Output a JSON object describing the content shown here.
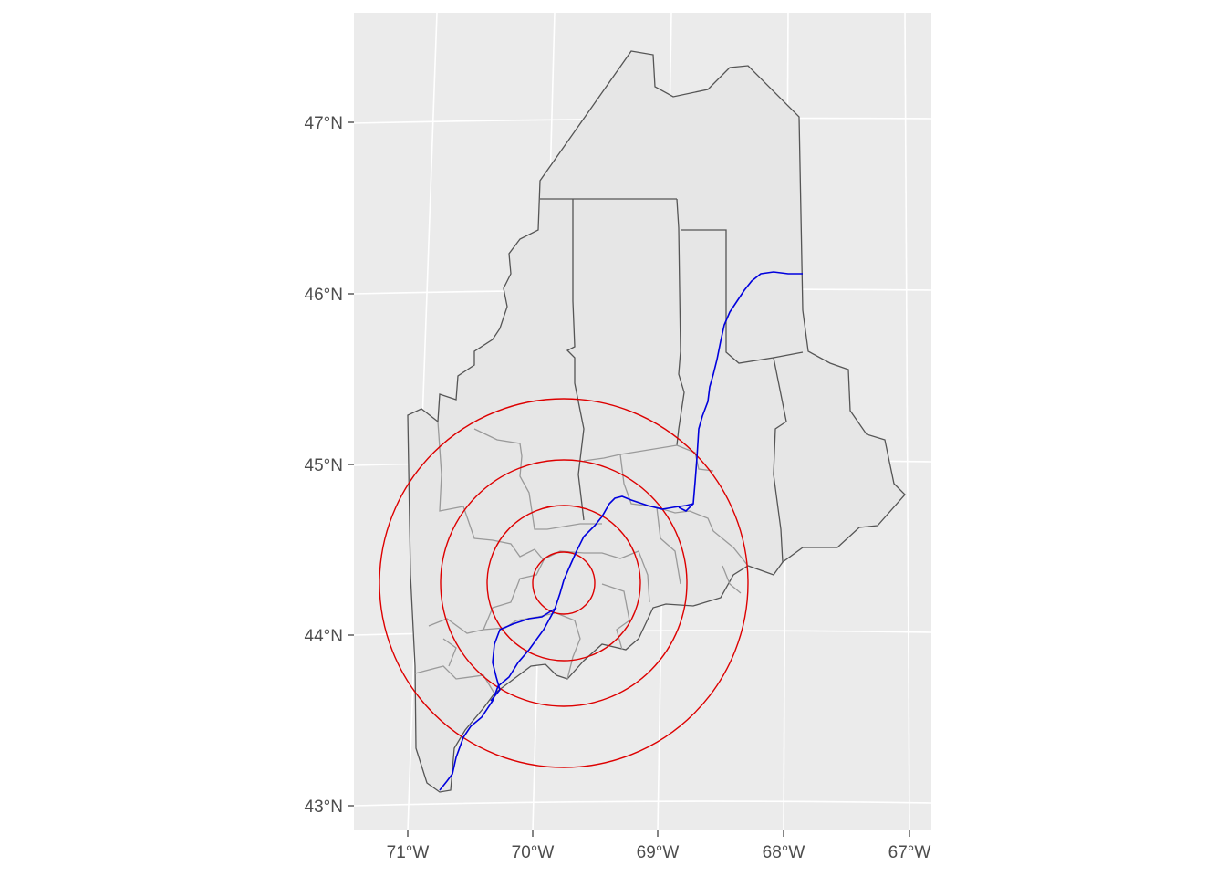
{
  "map": {
    "projection": "conic",
    "graticule": {
      "visible": true,
      "color": "#ffffff"
    },
    "panel_background": "#ebebeb",
    "y_ticks": [
      {
        "lat": 47,
        "label": "47°N"
      },
      {
        "lat": 46,
        "label": "46°N"
      },
      {
        "lat": 45,
        "label": "45°N"
      },
      {
        "lat": 44,
        "label": "44°N"
      },
      {
        "lat": 43,
        "label": "43°N"
      }
    ],
    "x_ticks": [
      {
        "lon": -71,
        "label": "71°W"
      },
      {
        "lon": -70,
        "label": "70°W"
      },
      {
        "lon": -69,
        "label": "69°W"
      },
      {
        "lon": -68,
        "label": "68°W"
      },
      {
        "lon": -67,
        "label": "67°W"
      }
    ],
    "layers": {
      "counties": {
        "fill": "#e6e6e6",
        "stroke": "#555555"
      },
      "subregions": {
        "stroke": "#9a9a9a"
      },
      "river": {
        "color": "#0000dd"
      },
      "buffers": {
        "color": "#dd0000",
        "center": {
          "lon": -69.75,
          "lat": 44.3
        },
        "radii_km": [
          20,
          50,
          80,
          120
        ]
      }
    }
  }
}
